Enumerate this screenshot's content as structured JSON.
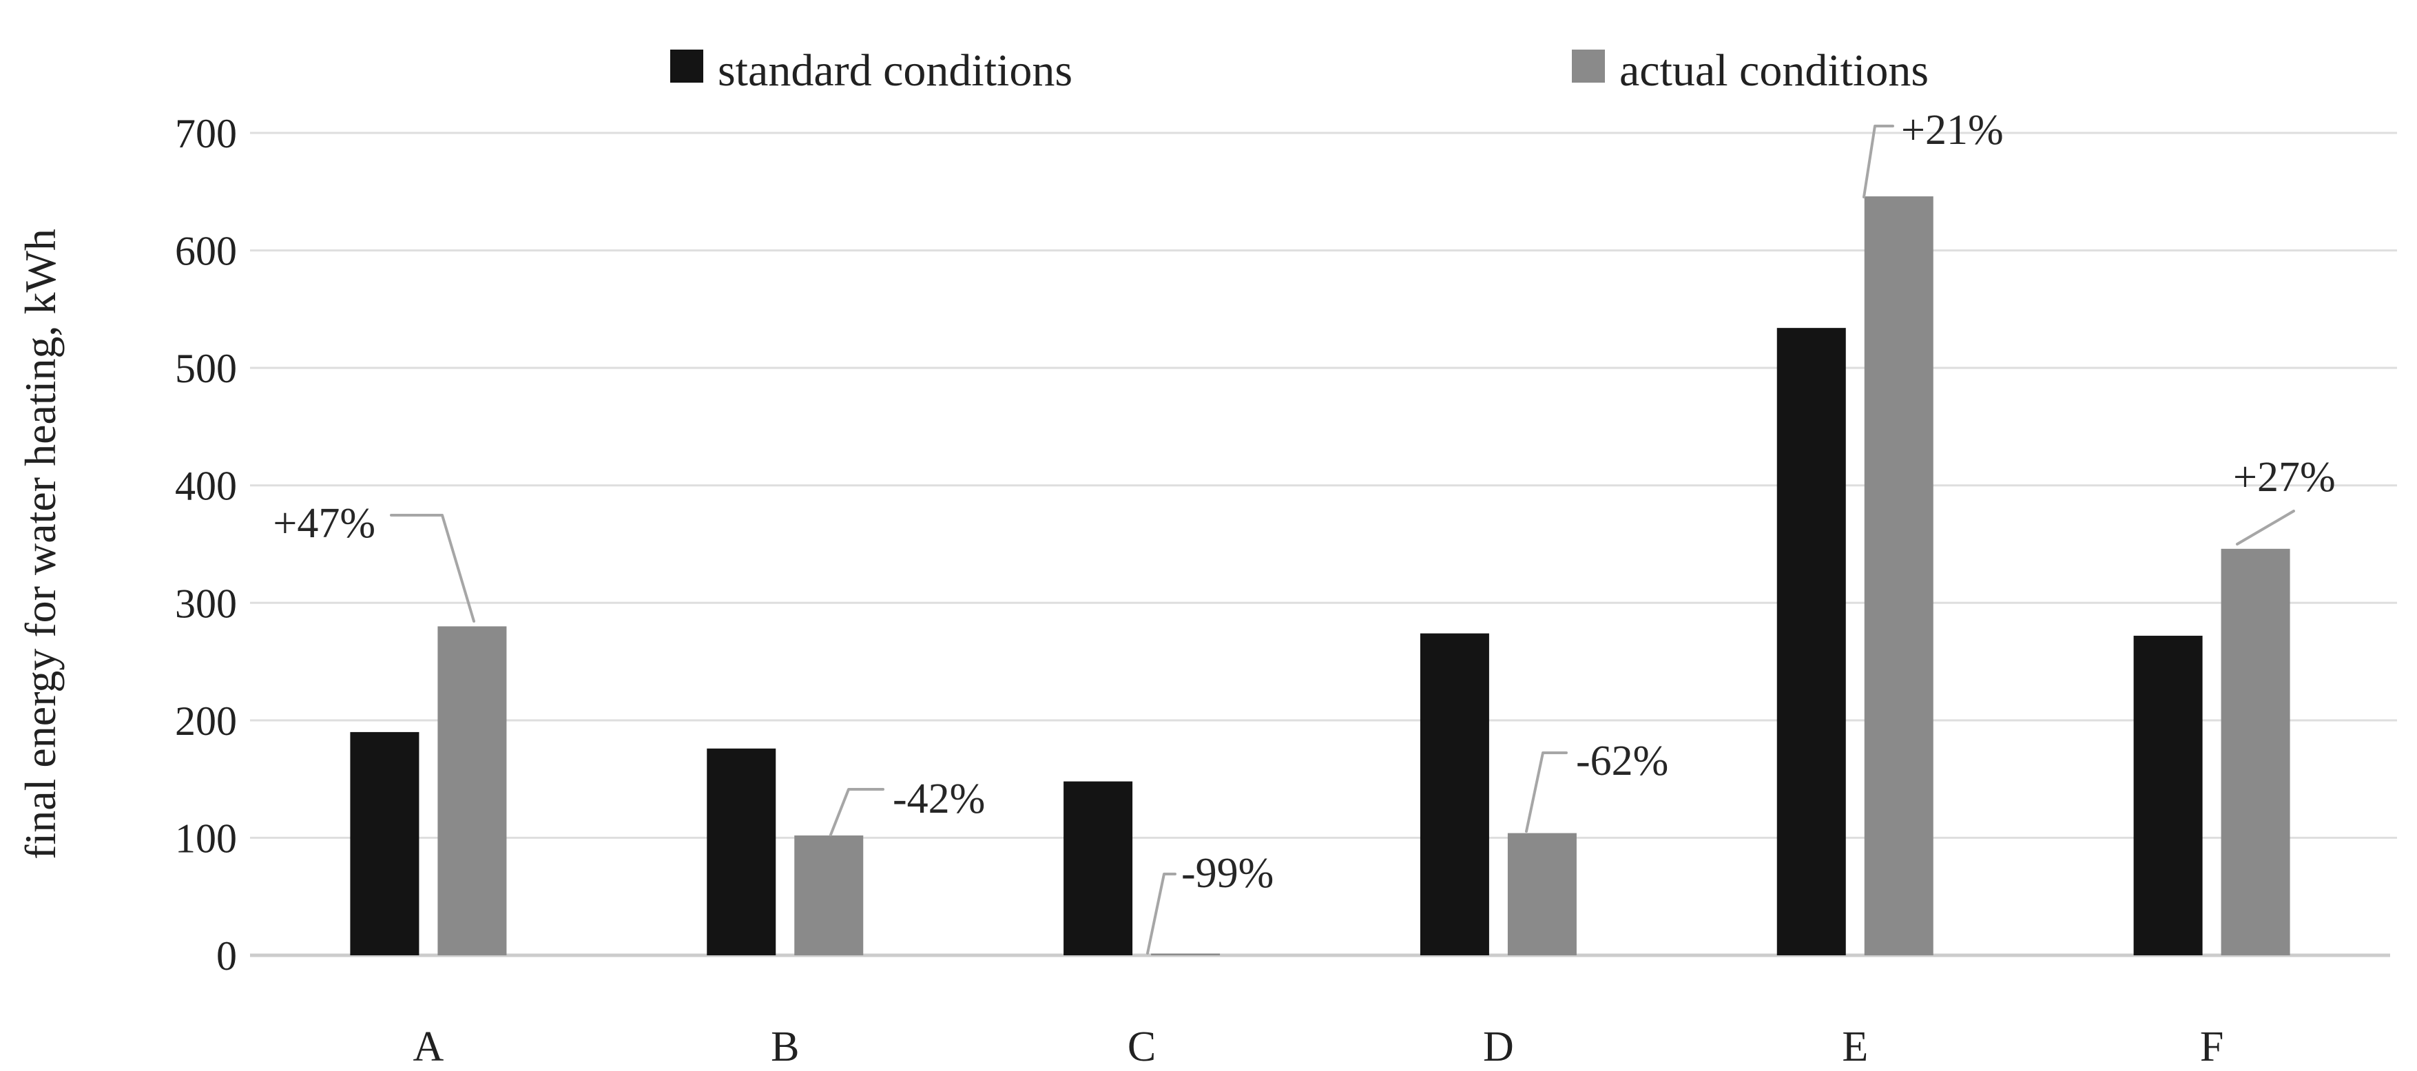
{
  "chart_data": {
    "type": "bar",
    "title": "",
    "xlabel": "",
    "ylabel": "final energy for water heating, kWh",
    "categories": [
      "A",
      "B",
      "C",
      "D",
      "E",
      "F"
    ],
    "series": [
      {
        "name": "standard conditions",
        "color": "#141414",
        "values": [
          190,
          176,
          148,
          274,
          534,
          272
        ]
      },
      {
        "name": "actual conditions",
        "color": "#8a8a8a",
        "values": [
          280,
          102,
          1.5,
          104,
          646,
          346
        ]
      }
    ],
    "annotations": [
      {
        "category": "A",
        "label": "+47%"
      },
      {
        "category": "B",
        "label": "-42%"
      },
      {
        "category": "C",
        "label": "-99%"
      },
      {
        "category": "D",
        "label": "-62%"
      },
      {
        "category": "E",
        "label": "+21%"
      },
      {
        "category": "F",
        "label": "+27%"
      }
    ],
    "ylim": [
      0,
      700
    ],
    "yticks": [
      0,
      100,
      200,
      300,
      400,
      500,
      600,
      700
    ],
    "grid": "horizontal-light",
    "legend_position": "top-center",
    "colors": {
      "grid_line": "#dedede",
      "axis_line": "#cccccc",
      "leader_line": "#a6a6a6",
      "text": "#212121"
    }
  }
}
